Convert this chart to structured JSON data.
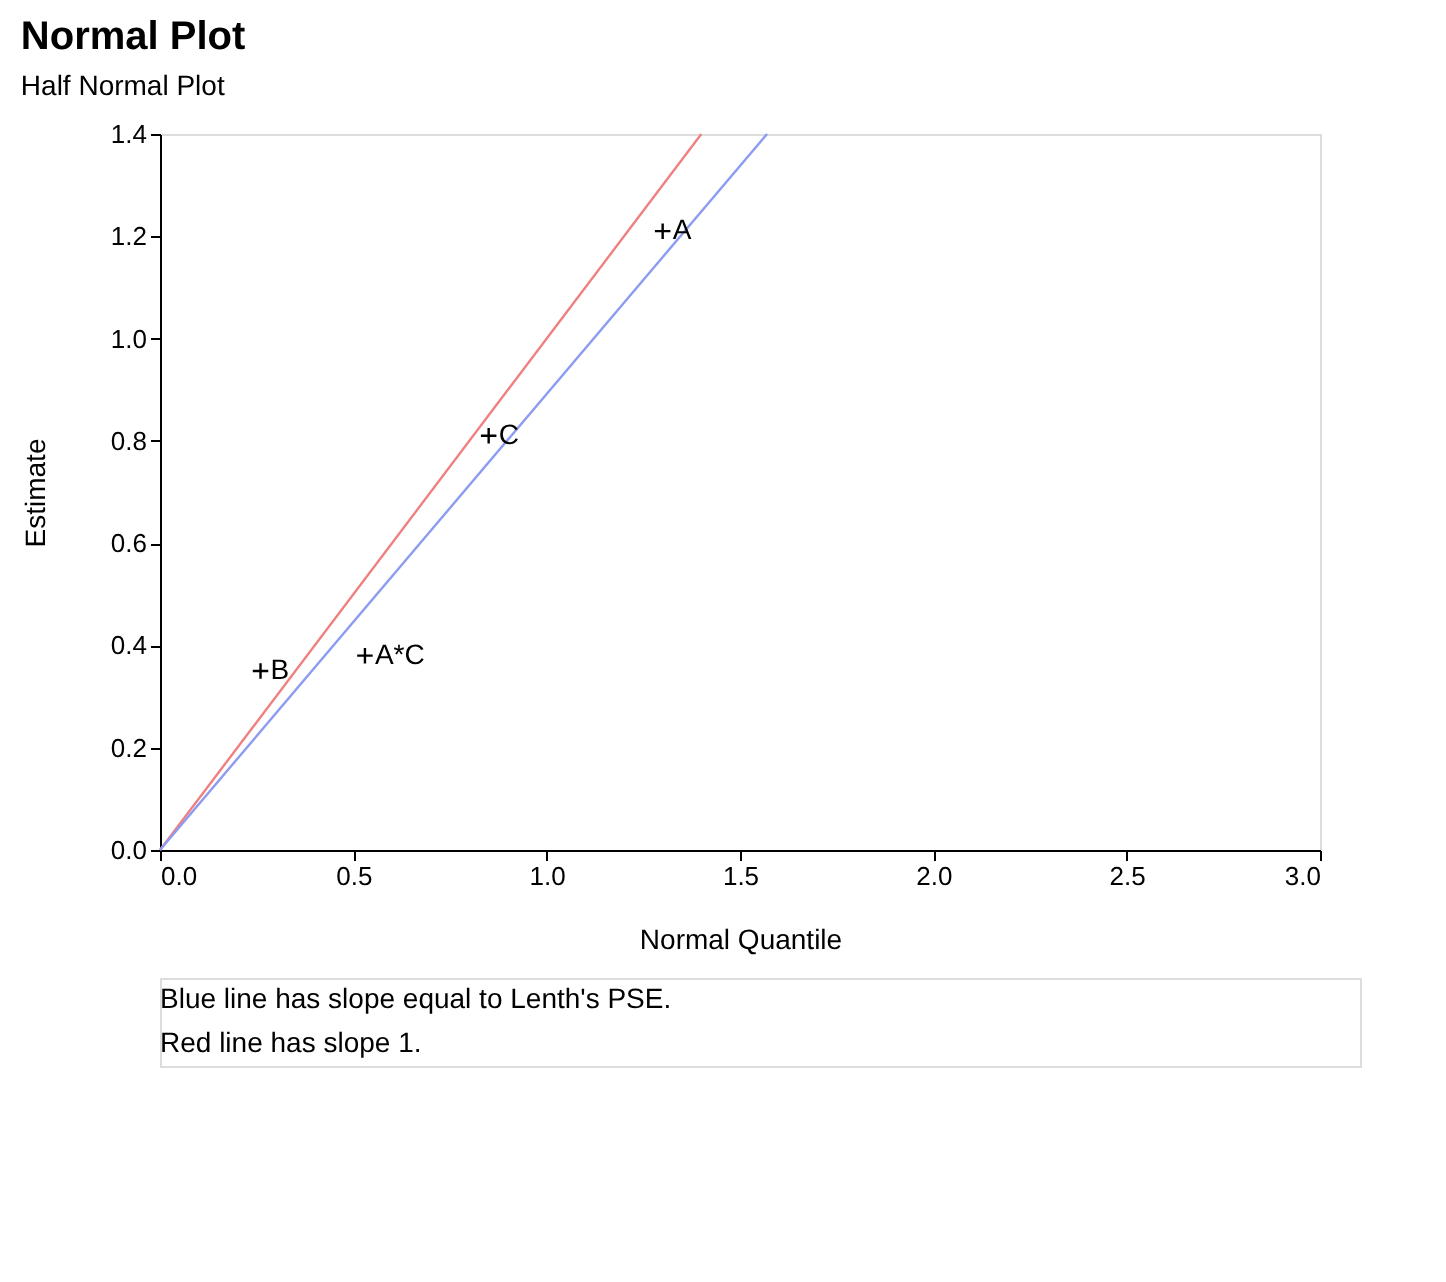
{
  "chart_data": {
    "type": "scatter",
    "title": "Normal Plot",
    "subtitle": "Half Normal Plot",
    "xlabel": "Normal Quantile",
    "ylabel": "Estimate",
    "xlim": [
      0,
      3
    ],
    "ylim": [
      0,
      1.4
    ],
    "xticks": [
      {
        "value": 0,
        "label": "0.0"
      },
      {
        "value": 0.5,
        "label": "0.5"
      },
      {
        "value": 1,
        "label": "1.0"
      },
      {
        "value": 1.5,
        "label": "1.5"
      },
      {
        "value": 2,
        "label": "2.0"
      },
      {
        "value": 2.5,
        "label": "2.5"
      },
      {
        "value": 3,
        "label": "3.0"
      }
    ],
    "yticks": [
      {
        "value": 0,
        "label": "0.0"
      },
      {
        "value": 0.2,
        "label": "0.2"
      },
      {
        "value": 0.4,
        "label": "0.4"
      },
      {
        "value": 0.6,
        "label": "0.6"
      },
      {
        "value": 0.8,
        "label": "0.8"
      },
      {
        "value": 1,
        "label": "1.0"
      },
      {
        "value": 1.2,
        "label": "1.2"
      },
      {
        "value": 1.4,
        "label": "1.4"
      }
    ],
    "grid": false,
    "series": [
      {
        "type": "line",
        "color": "#f08080",
        "x": [
          0,
          1.4
        ],
        "values": [
          0,
          1.4
        ]
      },
      {
        "type": "line",
        "color": "#8c9cf0",
        "x": [
          0,
          1.57
        ],
        "values": [
          0,
          1.4
        ]
      },
      {
        "marker": "cross",
        "color": "#000000",
        "x": [
          1.3,
          0.85,
          0.53,
          0.26
        ],
        "values": [
          1.21,
          0.81,
          0.38,
          0.35
        ]
      }
    ],
    "annotations": [
      {
        "text": "A",
        "x": 1.3,
        "y": 1.21
      },
      {
        "text": "C",
        "x": 0.85,
        "y": 0.81
      },
      {
        "text": "A*C",
        "x": 0.53,
        "y": 0.38
      },
      {
        "text": "B",
        "x": 0.26,
        "y": 0.35
      },
      "Blue line has slope equal to Lenth's PSE.",
      "Red line has slope 1."
    ]
  }
}
